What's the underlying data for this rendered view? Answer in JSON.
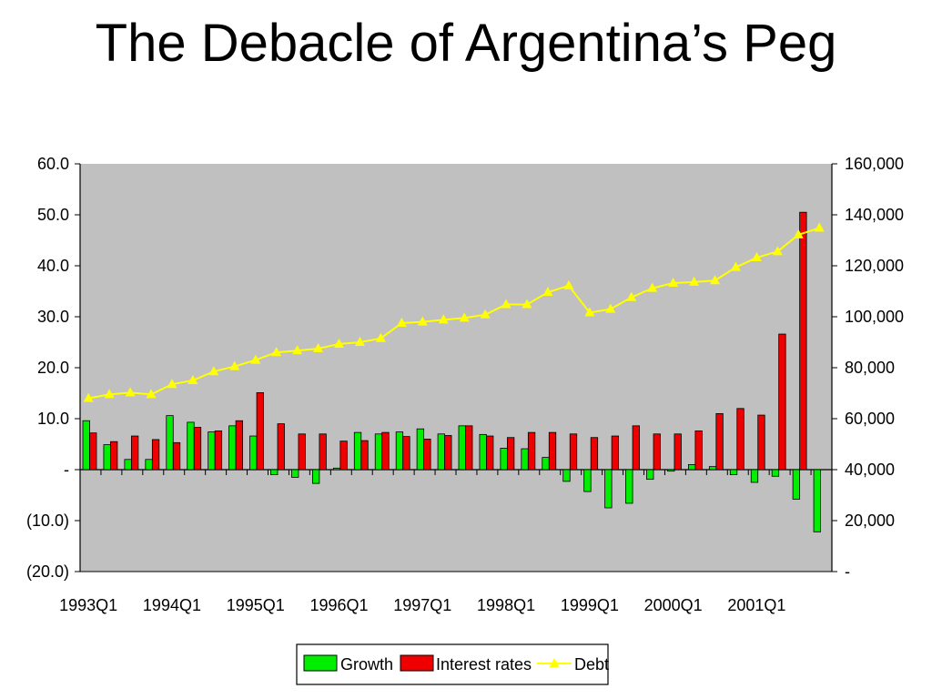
{
  "title": "The Debacle of Argentina’s Peg",
  "chart_data": {
    "type": "bar",
    "x_tick_labels": [
      "1993Q1",
      "1994Q1",
      "1995Q1",
      "1996Q1",
      "1997Q1",
      "1998Q1",
      "1999Q1",
      "2000Q1",
      "2001Q1"
    ],
    "quarters": [
      "1993Q1",
      "1993Q2",
      "1993Q3",
      "1993Q4",
      "1994Q1",
      "1994Q2",
      "1994Q3",
      "1994Q4",
      "1995Q1",
      "1995Q2",
      "1995Q3",
      "1995Q4",
      "1996Q1",
      "1996Q2",
      "1996Q3",
      "1996Q4",
      "1997Q1",
      "1997Q2",
      "1997Q3",
      "1997Q4",
      "1998Q1",
      "1998Q2",
      "1998Q3",
      "1998Q4",
      "1999Q1",
      "1999Q2",
      "1999Q3",
      "1999Q4",
      "2000Q1",
      "2000Q2",
      "2000Q3",
      "2000Q4",
      "2001Q1",
      "2001Q2",
      "2001Q3",
      "2001Q4"
    ],
    "left_axis": {
      "ylim": [
        -20,
        60
      ],
      "ticks": [
        -20,
        -10,
        0,
        10,
        20,
        30,
        40,
        50,
        60
      ],
      "tick_labels": [
        "(20.0)",
        "(10.0)",
        "-",
        "10.0",
        "20.0",
        "30.0",
        "40.0",
        "50.0",
        "60.0"
      ]
    },
    "right_axis": {
      "ylim": [
        0,
        160000
      ],
      "ticks": [
        0,
        20000,
        40000,
        60000,
        80000,
        100000,
        120000,
        140000,
        160000
      ],
      "tick_labels": [
        "-",
        "20,000",
        "40,000",
        "60,000",
        "80,000",
        "100,000",
        "120,000",
        "140,000",
        "160,000"
      ]
    },
    "series": [
      {
        "name": "Growth",
        "kind": "bar",
        "axis": "left",
        "color": "#00ee00",
        "values": [
          9.6,
          4.9,
          2.0,
          2.0,
          10.6,
          9.3,
          7.4,
          8.6,
          6.6,
          -1.0,
          -1.5,
          -2.7,
          0.3,
          7.3,
          7.0,
          7.4,
          8.0,
          7.0,
          8.6,
          6.9,
          4.2,
          4.1,
          2.4,
          -2.3,
          -4.3,
          -7.5,
          -6.6,
          -1.9,
          -0.3,
          1.0,
          0.6,
          -1.0,
          -2.5,
          -1.3,
          -5.8,
          -12.2
        ]
      },
      {
        "name": "Interest rates",
        "kind": "bar",
        "axis": "left",
        "color": "#ee0000",
        "values": [
          7.2,
          5.5,
          6.6,
          5.9,
          5.3,
          8.3,
          7.6,
          9.6,
          15.1,
          9.0,
          7.0,
          7.0,
          5.6,
          5.7,
          7.3,
          6.5,
          6.0,
          6.7,
          8.6,
          6.6,
          6.3,
          7.3,
          7.3,
          7.0,
          6.3,
          6.6,
          8.6,
          7.0,
          7.0,
          7.6,
          11.0,
          12.0,
          10.7,
          26.6,
          50.5,
          0
        ]
      },
      {
        "name": "Debt",
        "kind": "line",
        "axis": "right",
        "color": "#ffff00",
        "values": [
          68000,
          69500,
          70200,
          69500,
          73500,
          75000,
          78500,
          80500,
          83000,
          86000,
          86700,
          87500,
          89300,
          90000,
          91500,
          97500,
          98000,
          98800,
          99500,
          100800,
          104800,
          104800,
          109600,
          112200,
          101600,
          103000,
          107600,
          111200,
          113200,
          113600,
          114200,
          119400,
          123200,
          125600,
          132200,
          134800
        ]
      }
    ],
    "legend": {
      "position": "bottom-center",
      "entries": [
        "Growth",
        "Interest rates",
        "Debt"
      ]
    },
    "plot_background": "#c0c0c0",
    "grid": false
  }
}
